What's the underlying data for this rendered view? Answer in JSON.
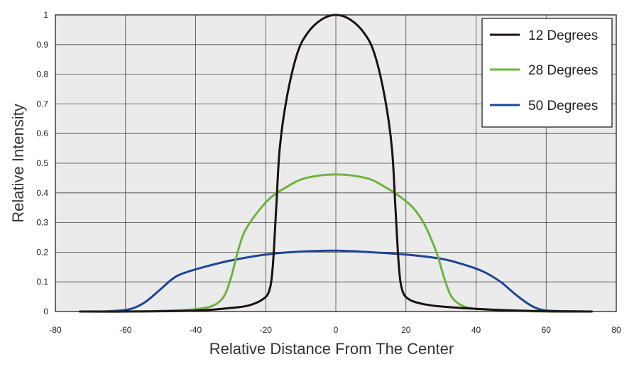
{
  "chart_data": {
    "type": "line",
    "title": "",
    "xlabel": "Relative Distance From The Center",
    "ylabel": "Relative Intensity",
    "xlim": [
      -80,
      80
    ],
    "ylim": [
      0,
      1
    ],
    "x_ticks": [
      -80,
      -60,
      -40,
      -20,
      0,
      20,
      40,
      60,
      80
    ],
    "y_ticks": [
      0,
      0.1,
      0.2,
      0.3,
      0.4,
      0.5,
      0.6,
      0.7,
      0.8,
      0.9,
      1
    ],
    "grid": true,
    "legend_position": "top-right",
    "series": [
      {
        "name": "12 Degrees",
        "color": "#1a1210",
        "points": [
          [
            -73,
            0
          ],
          [
            -60,
            0
          ],
          [
            -40,
            0.003
          ],
          [
            -30,
            0.012
          ],
          [
            -25,
            0.02
          ],
          [
            -21,
            0.04
          ],
          [
            -19,
            0.07
          ],
          [
            -18,
            0.15
          ],
          [
            -17,
            0.35
          ],
          [
            -16,
            0.55
          ],
          [
            -14,
            0.72
          ],
          [
            -11,
            0.87
          ],
          [
            -8,
            0.94
          ],
          [
            -4,
            0.985
          ],
          [
            0,
            1
          ],
          [
            4,
            0.985
          ],
          [
            8,
            0.94
          ],
          [
            11,
            0.87
          ],
          [
            14,
            0.72
          ],
          [
            16,
            0.55
          ],
          [
            17,
            0.35
          ],
          [
            18,
            0.15
          ],
          [
            19,
            0.07
          ],
          [
            21,
            0.04
          ],
          [
            25,
            0.025
          ],
          [
            30,
            0.017
          ],
          [
            40,
            0.009
          ],
          [
            50,
            0.004
          ],
          [
            60,
            0.001
          ],
          [
            73,
            0
          ]
        ]
      },
      {
        "name": "28 Degrees",
        "color": "#6db33f",
        "points": [
          [
            -73,
            0
          ],
          [
            -60,
            0
          ],
          [
            -50,
            0.002
          ],
          [
            -40,
            0.008
          ],
          [
            -35,
            0.02
          ],
          [
            -32,
            0.05
          ],
          [
            -30,
            0.11
          ],
          [
            -28,
            0.2
          ],
          [
            -26,
            0.27
          ],
          [
            -22,
            0.34
          ],
          [
            -18,
            0.39
          ],
          [
            -14,
            0.42
          ],
          [
            -10,
            0.445
          ],
          [
            -5,
            0.458
          ],
          [
            0,
            0.462
          ],
          [
            5,
            0.458
          ],
          [
            10,
            0.445
          ],
          [
            14,
            0.42
          ],
          [
            18,
            0.39
          ],
          [
            22,
            0.35
          ],
          [
            25,
            0.3
          ],
          [
            27,
            0.25
          ],
          [
            29,
            0.19
          ],
          [
            31,
            0.11
          ],
          [
            33,
            0.05
          ],
          [
            36,
            0.02
          ],
          [
            40,
            0.009
          ],
          [
            50,
            0.003
          ],
          [
            60,
            0
          ],
          [
            73,
            0
          ]
        ]
      },
      {
        "name": "50 Degrees",
        "color": "#1f4596",
        "points": [
          [
            -73,
            0
          ],
          [
            -65,
            0.001
          ],
          [
            -60,
            0.005
          ],
          [
            -57,
            0.015
          ],
          [
            -54,
            0.035
          ],
          [
            -50,
            0.075
          ],
          [
            -46,
            0.115
          ],
          [
            -42,
            0.135
          ],
          [
            -36,
            0.155
          ],
          [
            -30,
            0.172
          ],
          [
            -20,
            0.192
          ],
          [
            -10,
            0.202
          ],
          [
            0,
            0.205
          ],
          [
            10,
            0.2
          ],
          [
            20,
            0.192
          ],
          [
            30,
            0.178
          ],
          [
            36,
            0.16
          ],
          [
            42,
            0.135
          ],
          [
            47,
            0.1
          ],
          [
            51,
            0.06
          ],
          [
            55,
            0.025
          ],
          [
            58,
            0.008
          ],
          [
            62,
            0.002
          ],
          [
            73,
            0
          ]
        ]
      }
    ]
  }
}
